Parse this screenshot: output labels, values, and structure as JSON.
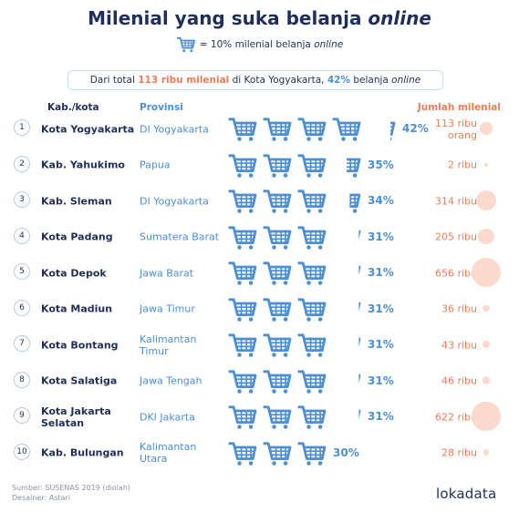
{
  "header": {
    "title_main": "Milenial yang suka belanja ",
    "title_italic": "online",
    "legend_text": "= 10% milenial belanja ",
    "legend_italic": "online",
    "summary_pre": "Dari total ",
    "summary_hl1": "113 ribu milenial",
    "summary_mid": " di Kota Yogyakarta, ",
    "summary_hl2": "42%",
    "summary_post": " belanja ",
    "summary_italic": "online"
  },
  "columns": {
    "kab": "Kab./kota",
    "prov": "Provinsi",
    "jml": "Jumlah milenial"
  },
  "colors": {
    "navy": "#1f2f5a",
    "cart_blue": "#4c8fd3",
    "orange": "#ef7b56",
    "bubble": "#fbd9cc"
  },
  "chart_data": {
    "type": "table",
    "unit_icon": "shopping-cart-icon",
    "unit_value": 10,
    "rows": [
      {
        "rank": "1",
        "kab": "Kota Yogyakarta",
        "prov": "DI Yogyakarta",
        "pct": 42,
        "pct_label": "42%",
        "jumlah": 113,
        "jumlah_label": "113 ribu orang"
      },
      {
        "rank": "2",
        "kab": "Kab. Yahukimo",
        "prov": "Papua",
        "pct": 35,
        "pct_label": "35%",
        "jumlah": 2,
        "jumlah_label": "2 ribu"
      },
      {
        "rank": "3",
        "kab": "Kab. Sleman",
        "prov": "DI Yogyakarta",
        "pct": 34,
        "pct_label": "34%",
        "jumlah": 314,
        "jumlah_label": "314 ribu"
      },
      {
        "rank": "4",
        "kab": "Kota Padang",
        "prov": "Sumatera Barat",
        "pct": 31,
        "pct_label": "31%",
        "jumlah": 205,
        "jumlah_label": "205 ribu"
      },
      {
        "rank": "5",
        "kab": "Kota Depok",
        "prov": "Jawa Barat",
        "pct": 31,
        "pct_label": "31%",
        "jumlah": 656,
        "jumlah_label": "656 ribu"
      },
      {
        "rank": "6",
        "kab": "Kota Madiun",
        "prov": "Jawa Timur",
        "pct": 31,
        "pct_label": "31%",
        "jumlah": 36,
        "jumlah_label": "36 ribu"
      },
      {
        "rank": "7",
        "kab": "Kota Bontang",
        "prov": "Kalimantan Timur",
        "pct": 31,
        "pct_label": "31%",
        "jumlah": 43,
        "jumlah_label": "43 ribu"
      },
      {
        "rank": "8",
        "kab": "Kota Salatiga",
        "prov": "Jawa Tengah",
        "pct": 31,
        "pct_label": "31%",
        "jumlah": 46,
        "jumlah_label": "46 ribu"
      },
      {
        "rank": "9",
        "kab": "Kota Jakarta Selatan",
        "prov": "DKI Jakarta",
        "pct": 31,
        "pct_label": "31%",
        "jumlah": 622,
        "jumlah_label": "622 ribu"
      },
      {
        "rank": "10",
        "kab": "Kab. Bulungan",
        "prov": "Kalimantan Utara",
        "pct": 30,
        "pct_label": "30%",
        "jumlah": 28,
        "jumlah_label": "28 ribu"
      }
    ]
  },
  "footer": {
    "source": "Sumber: SUSENAS 2019 (diolah)",
    "designer": "Desainer: Astari",
    "logo": "lokadata"
  }
}
